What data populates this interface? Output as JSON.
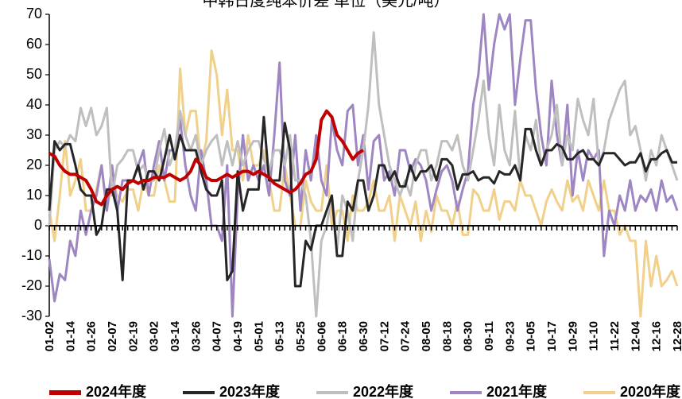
{
  "chart_data": {
    "type": "line",
    "title": "中韩日度纯苯价差 单位（美元/吨）",
    "categories": [
      "01-02",
      null,
      null,
      null,
      "01-14",
      null,
      null,
      null,
      "01-26",
      null,
      null,
      null,
      "02-07",
      null,
      null,
      null,
      "02-19",
      null,
      null,
      null,
      "03-02",
      null,
      null,
      null,
      "03-14",
      null,
      null,
      null,
      "03-26",
      null,
      null,
      null,
      "04-07",
      null,
      null,
      null,
      "04-19",
      null,
      null,
      null,
      "05-01",
      null,
      null,
      null,
      "05-13",
      null,
      null,
      null,
      "05-25",
      null,
      null,
      null,
      "06-06",
      null,
      null,
      null,
      "06-18",
      null,
      null,
      null,
      "06-30",
      null,
      null,
      null,
      "07-12",
      null,
      null,
      null,
      "07-24",
      null,
      null,
      null,
      "08-05",
      null,
      null,
      null,
      "08-18",
      null,
      null,
      null,
      "08-30",
      null,
      null,
      null,
      "09-11",
      null,
      null,
      null,
      "09-23",
      null,
      null,
      null,
      "10-05",
      null,
      null,
      null,
      "10-17",
      null,
      null,
      null,
      "10-29",
      null,
      null,
      null,
      "11-10",
      null,
      null,
      null,
      "11-22",
      null,
      null,
      null,
      "12-04",
      null,
      null,
      null,
      "12-16",
      null,
      null,
      null,
      "12-28"
    ],
    "series": [
      {
        "name": "2024年度",
        "color": "#c00000",
        "values": [
          24,
          23,
          20,
          18,
          17,
          17,
          16,
          15,
          12,
          8,
          7,
          10,
          12,
          13,
          12,
          14,
          15,
          14,
          15,
          15,
          16,
          16,
          16,
          17,
          16,
          15,
          16,
          18,
          22,
          20,
          16,
          15,
          15,
          16,
          17,
          16,
          17,
          18,
          18,
          17,
          18,
          17,
          16,
          14,
          13,
          12,
          11,
          12,
          14,
          17,
          18,
          22,
          35,
          38,
          36,
          30,
          28,
          25,
          22,
          24,
          25,
          null,
          null,
          null,
          null,
          null,
          null,
          null,
          null,
          null,
          null,
          null,
          null,
          null,
          null,
          null,
          null,
          null,
          null,
          null,
          null,
          null,
          null,
          null,
          null,
          null,
          null,
          null,
          null,
          null,
          null,
          null,
          null,
          null,
          null,
          null,
          null,
          null,
          null,
          null,
          null,
          null,
          null,
          null,
          null,
          null,
          null,
          null,
          null,
          null,
          null,
          null,
          null,
          null,
          null,
          null,
          null,
          null,
          null,
          null,
          null
        ]
      },
      {
        "name": "2023年度",
        "color": "#262626",
        "values": [
          5,
          28,
          25,
          27,
          27,
          20,
          12,
          10,
          10,
          -3,
          0,
          12,
          12,
          5,
          -18,
          15,
          15,
          20,
          12,
          18,
          18,
          15,
          22,
          30,
          22,
          30,
          25,
          25,
          25,
          18,
          12,
          10,
          10,
          15,
          -18,
          -15,
          18,
          5,
          12,
          12,
          12,
          36,
          15,
          15,
          15,
          34,
          25,
          -20,
          -20,
          -5,
          -8,
          0,
          0,
          5,
          10,
          -10,
          -10,
          8,
          5,
          15,
          15,
          5,
          10,
          20,
          20,
          15,
          18,
          13,
          13,
          20,
          15,
          18,
          18,
          20,
          15,
          22,
          22,
          20,
          12,
          17,
          17,
          18,
          15,
          16,
          16,
          14,
          18,
          17,
          17,
          20,
          15,
          32,
          32,
          25,
          20,
          25,
          25,
          27,
          26,
          22,
          22,
          24,
          25,
          22,
          22,
          20,
          24,
          24,
          24,
          22,
          20,
          21,
          21,
          24,
          18,
          22,
          22,
          24,
          25,
          21,
          21
        ]
      },
      {
        "name": "2022年度",
        "color": "#bfbfbf",
        "values": [
          0,
          25,
          28,
          26,
          30,
          28,
          39,
          33,
          39,
          30,
          33,
          39,
          10,
          20,
          22,
          25,
          25,
          18,
          20,
          15,
          15,
          25,
          32,
          20,
          25,
          38,
          30,
          25,
          30,
          20,
          25,
          28,
          30,
          20,
          28,
          20,
          28,
          20,
          25,
          28,
          28,
          22,
          18,
          25,
          25,
          20,
          30,
          15,
          15,
          10,
          -5,
          -30,
          -5,
          0,
          10,
          -8,
          10,
          5,
          -5,
          15,
          25,
          40,
          64,
          40,
          30,
          20,
          15,
          10,
          15,
          10,
          20,
          25,
          25,
          15,
          20,
          28,
          28,
          25,
          30,
          20,
          15,
          25,
          35,
          48,
          30,
          20,
          40,
          25,
          20,
          38,
          15,
          30,
          25,
          35,
          20,
          25,
          30,
          40,
          20,
          30,
          25,
          42,
          35,
          30,
          42,
          20,
          25,
          35,
          40,
          45,
          48,
          30,
          33,
          25,
          15,
          25,
          20,
          30,
          25,
          20,
          15
        ]
      },
      {
        "name": "2021年度",
        "color": "#9e86c2",
        "values": [
          -11,
          -25,
          -16,
          -18,
          -5,
          -10,
          5,
          -3,
          5,
          10,
          20,
          5,
          20,
          5,
          15,
          15,
          15,
          20,
          25,
          10,
          20,
          28,
          15,
          25,
          25,
          35,
          20,
          10,
          5,
          25,
          15,
          0,
          0,
          -5,
          20,
          -30,
          10,
          30,
          15,
          20,
          15,
          20,
          10,
          30,
          54,
          15,
          10,
          30,
          5,
          25,
          15,
          30,
          15,
          10,
          35,
          25,
          20,
          38,
          40,
          20,
          30,
          12,
          28,
          30,
          15,
          18,
          10,
          25,
          25,
          18,
          22,
          20,
          15,
          5,
          12,
          18,
          20,
          15,
          5,
          12,
          18,
          40,
          50,
          70,
          45,
          60,
          70,
          65,
          70,
          40,
          55,
          68,
          68,
          45,
          30,
          20,
          48,
          30,
          20,
          40,
          10,
          25,
          15,
          25,
          22,
          25,
          -10,
          5,
          0,
          10,
          5,
          15,
          5,
          10,
          8,
          12,
          5,
          15,
          8,
          10,
          5
        ]
      },
      {
        "name": "2020年度",
        "color": "#f0d08a",
        "values": [
          5,
          -5,
          10,
          28,
          10,
          15,
          22,
          5,
          5,
          12,
          20,
          5,
          15,
          10,
          8,
          12,
          12,
          5,
          15,
          10,
          10,
          20,
          15,
          8,
          8,
          52,
          30,
          38,
          38,
          20,
          28,
          58,
          50,
          30,
          45,
          25,
          25,
          15,
          30,
          20,
          20,
          25,
          15,
          5,
          5,
          20,
          10,
          0,
          0,
          15,
          8,
          5,
          5,
          20,
          0,
          5,
          5,
          -5,
          10,
          5,
          5,
          8,
          15,
          5,
          5,
          10,
          -5,
          10,
          5,
          0,
          8,
          -5,
          5,
          -2,
          10,
          5,
          5,
          0,
          8,
          -3,
          -3,
          12,
          10,
          5,
          5,
          12,
          2,
          8,
          8,
          5,
          15,
          10,
          10,
          5,
          0,
          8,
          12,
          8,
          5,
          15,
          8,
          10,
          5,
          15,
          10,
          5,
          15,
          5,
          5,
          -3,
          0,
          -5,
          -5,
          -30,
          -5,
          -20,
          -10,
          -20,
          -18,
          -15,
          -20
        ]
      }
    ],
    "ylim": [
      -30,
      70
    ],
    "yticks": [
      -30,
      -20,
      -10,
      0,
      10,
      20,
      30,
      40,
      50,
      60,
      70
    ],
    "grid": false,
    "legend": "bottom"
  }
}
